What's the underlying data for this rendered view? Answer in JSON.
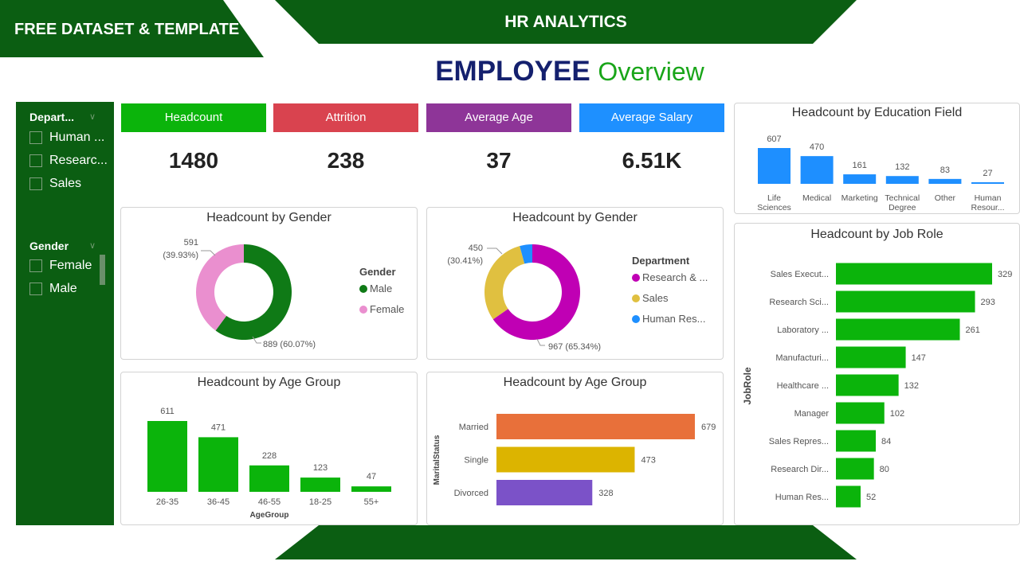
{
  "banner": {
    "left": "FREE DATASET & TEMPLATE",
    "center": "HR ANALYTICS"
  },
  "title": {
    "bold": "EMPLOYEE",
    "light": "Overview"
  },
  "colors": {
    "dark_green": "#0b5e12",
    "kpi_headcount": "#0bb40b",
    "kpi_attrition": "#d9434f",
    "kpi_age": "#8e3598",
    "kpi_salary": "#1e90ff"
  },
  "slicers": {
    "department": {
      "label": "Depart...",
      "items": [
        "Human ...",
        "Researc...",
        "Sales"
      ]
    },
    "gender": {
      "label": "Gender",
      "items": [
        "Female",
        "Male"
      ]
    }
  },
  "kpis": [
    {
      "label": "Headcount",
      "value": "1480"
    },
    {
      "label": "Attrition",
      "value": "238"
    },
    {
      "label": "Average Age",
      "value": "37"
    },
    {
      "label": "Average Salary",
      "value": "6.51K"
    }
  ],
  "chart_data": [
    {
      "id": "gender",
      "type": "pie",
      "donut": true,
      "title": "Headcount by Gender",
      "legend_title": "Gender",
      "legend_placement": "right",
      "slices": [
        {
          "name": "Male",
          "value": 889,
          "pct": "60.07%",
          "color": "#0f7a16"
        },
        {
          "name": "Female",
          "value": 591,
          "pct": "39.93%",
          "color": "#ea8fcf"
        }
      ],
      "data_labels": [
        "591",
        "(39.93%)",
        "889 (60.07%)"
      ]
    },
    {
      "id": "dept",
      "type": "pie",
      "donut": true,
      "title": "Headcount by Gender",
      "legend_title": "Department",
      "legend_placement": "right",
      "slices": [
        {
          "name": "Research & ...",
          "value": 967,
          "pct": "65.34%",
          "color": "#c000b4"
        },
        {
          "name": "Sales",
          "value": 450,
          "pct": "30.41%",
          "color": "#e0c040"
        },
        {
          "name": "Human Res...",
          "value": 63,
          "color": "#1e8fff"
        }
      ],
      "data_labels": [
        "450",
        "(30.41%)",
        "967 (65.34%)"
      ]
    },
    {
      "id": "age",
      "type": "bar",
      "title": "Headcount by Age Group",
      "xlabel": "AgeGroup",
      "color": "#0bb40b",
      "categories": [
        "26-35",
        "36-45",
        "46-55",
        "18-25",
        "55+"
      ],
      "values": [
        611,
        471,
        228,
        123,
        47
      ]
    },
    {
      "id": "marital",
      "type": "bar",
      "orientation": "horizontal",
      "title": "Headcount by Age Group",
      "ylabel": "MaritalStatus",
      "categories": [
        "Married",
        "Single",
        "Divorced"
      ],
      "values": [
        679,
        473,
        328
      ],
      "colors": [
        "#e8703a",
        "#dcb400",
        "#7b52c8"
      ]
    },
    {
      "id": "edu",
      "type": "bar",
      "title": "Headcount by Education Field",
      "color": "#1e8fff",
      "categories": [
        [
          "Life",
          "Sciences"
        ],
        [
          "Medical"
        ],
        [
          "Marketing"
        ],
        [
          "Technical",
          "Degree"
        ],
        [
          "Other"
        ],
        [
          "Human",
          "Resour..."
        ]
      ],
      "values": [
        607,
        470,
        161,
        132,
        83,
        27
      ]
    },
    {
      "id": "job",
      "type": "bar",
      "orientation": "horizontal",
      "title": "Headcount by Job Role",
      "ylabel": "JobRole",
      "color": "#0bb40b",
      "categories": [
        "Sales Execut...",
        "Research Sci...",
        "Laboratory ...",
        "Manufacturi...",
        "Healthcare ...",
        "Manager",
        "Sales Repres...",
        "Research Dir...",
        "Human Res..."
      ],
      "values": [
        329,
        293,
        261,
        147,
        132,
        102,
        84,
        80,
        52
      ]
    }
  ]
}
